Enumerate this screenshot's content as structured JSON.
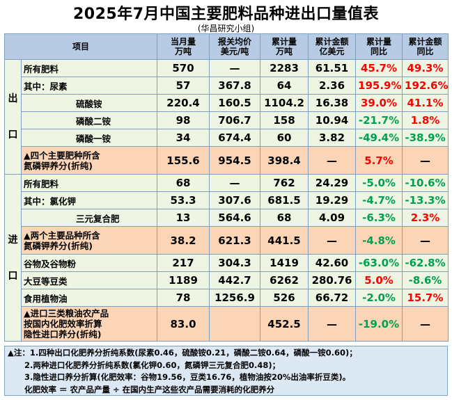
{
  "title": "2025年7月中国主要肥料品种进出口量值表",
  "subtitle": "(华昌研究小组)",
  "headers": {
    "item": "项目",
    "month_qty": [
      "当月量",
      "万吨"
    ],
    "price": [
      "报关均价",
      "美元/吨"
    ],
    "cum_qty": [
      "累计量",
      "万吨"
    ],
    "cum_amt": [
      "累计金额",
      "亿美元"
    ],
    "cum_qty_yoy": [
      "累计量",
      "同比"
    ],
    "cum_amt_yoy": [
      "累计金额",
      "同比"
    ]
  },
  "export": {
    "label": [
      "出",
      "口"
    ],
    "rows": [
      {
        "name": "所有肥料",
        "c1": "570",
        "c2": "—",
        "c3": "2283",
        "c4": "61.51",
        "c5": "45.7%",
        "c6": "49.3%"
      },
      {
        "name": "其中：尿素",
        "c1": "57",
        "c2": "367.8",
        "c3": "64",
        "c4": "2.36",
        "c5": "195.9%",
        "c6": "192.6%"
      },
      {
        "name": "硫酸铵",
        "c1": "220.4",
        "c2": "160.5",
        "c3": "1104.2",
        "c4": "16.38",
        "c5": "39.0%",
        "c6": "41.1%"
      },
      {
        "name": "磷酸二铵",
        "c1": "98",
        "c2": "706.7",
        "c3": "158",
        "c4": "10.94",
        "c5": "-21.7%",
        "c6": "1.8%"
      },
      {
        "name": "磷酸一铵",
        "c1": "34",
        "c2": "674.4",
        "c3": "60",
        "c4": "3.82",
        "c5": "-49.4%",
        "c6": "-38.9%"
      },
      {
        "name": [
          "▲四个主要肥种所含",
          "氮磷钾养分(折纯)"
        ],
        "c1": "155.6",
        "c2": "954.5",
        "c3": "398.4",
        "c4": "—",
        "c5": "5.7%",
        "c6": "—"
      }
    ]
  },
  "import": {
    "label": [
      "进",
      "口"
    ],
    "rows": [
      {
        "name": "所有肥料",
        "c1": "68",
        "c2": "—",
        "c3": "762",
        "c4": "24.29",
        "c5": "-5.0%",
        "c6": "-10.6%"
      },
      {
        "name": "其中：氯化钾",
        "c1": "53.3",
        "c2": "307.6",
        "c3": "681.5",
        "c4": "19.29",
        "c5": "-4.7%",
        "c6": "-13.3%"
      },
      {
        "name": "三元复合肥",
        "c1": "13",
        "c2": "564.6",
        "c3": "68",
        "c4": "4.09",
        "c5": "-6.3%",
        "c6": "2.3%"
      },
      {
        "name": [
          "▲两个主要品种所含",
          "氮磷钾养分(折纯)"
        ],
        "c1": "38.2",
        "c2": "621.3",
        "c3": "441.5",
        "c4": "—",
        "c5": "-4.8%",
        "c6": "—"
      },
      {
        "name": "谷物及谷物粉",
        "c1": "217",
        "c2": "304.3",
        "c3": "1419",
        "c4": "42.60",
        "c5": "-63.0%",
        "c6": "-62.8%"
      },
      {
        "name": "大豆等豆类",
        "c1": "1189",
        "c2": "442.7",
        "c3": "6262",
        "c4": "280.76",
        "c5": "5.0%",
        "c6": "-8.6%"
      },
      {
        "name": "食用植物油",
        "c1": "78",
        "c2": "1256.9",
        "c3": "526",
        "c4": "66.72",
        "c5": "-2.0%",
        "c6": "15.7%"
      },
      {
        "name": [
          "▲进口三类粮油农产品",
          "按国内化肥效率折算",
          "隐性进口养分(折纯)"
        ],
        "c1": "83.0",
        "c2": "",
        "c3": "452.5",
        "c4": "—",
        "c5": "-19.0%",
        "c6": "—"
      }
    ]
  },
  "notes": [
    "▲注：1.四种出口化肥养分折纯系数(尿素0.46，硫酸铵0.21，磷酸二铵0.64，磷酸一铵0.60)；",
    "2.两种进口化肥养分折纯系数(氯化钾0.60，氮磷钾三元复合肥0.48)；",
    "3.隐性进口养分折算(化肥效率：谷物19.56，豆类16.76，植物油按20%出油率折豆类)。",
    "化肥效率 ＝ 农产品产量 ÷ 在国内生产这些农产品需要消耗的化肥养分"
  ],
  "colors": {
    "positive": "#ff0000",
    "negative": "#00a050",
    "header": "#b7cce4",
    "green_row": "#eef5e2",
    "orange_row": "#fbd5b5"
  }
}
